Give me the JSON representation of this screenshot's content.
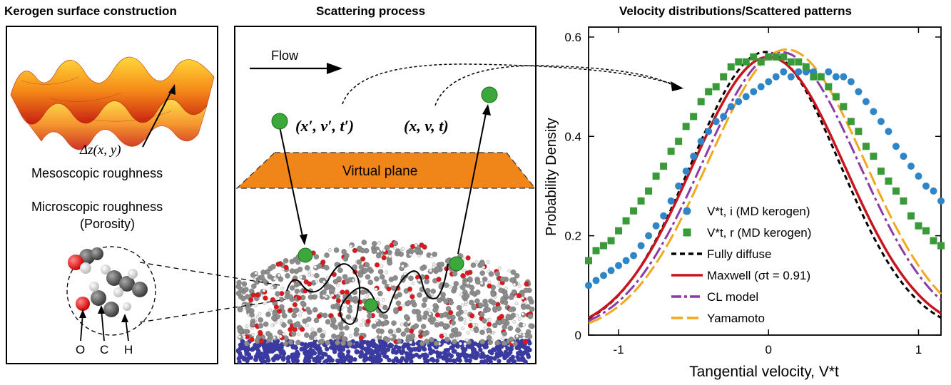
{
  "panels": {
    "left": {
      "title": "Kerogen surface construction",
      "delta_z": "Δz(x, y)",
      "meso": "Mesoscopic roughness",
      "micro_line1": "Microscopic roughness",
      "micro_line2": "(Porosity)",
      "atoms": [
        "O",
        "C",
        "H"
      ]
    },
    "middle": {
      "title": "Scattering process",
      "flow": "Flow",
      "incoming": "(x′, v′, t′)",
      "outgoing": "(x, v, t)",
      "virtual_plane": "Virtual plane"
    },
    "right": {
      "title": "Velocity distributions/Scattered patterns"
    }
  },
  "chart_data": {
    "type": "line",
    "xlabel": "Tangential velocity, V*t",
    "ylabel": "Probability Density",
    "xlim": [
      -1.2,
      1.15
    ],
    "ylim": [
      0,
      0.62
    ],
    "xticks": [
      "-1",
      "0",
      "1"
    ],
    "yticks": [
      "0",
      "0.2",
      "0.4",
      "0.6"
    ],
    "legend_position": "bottom-right",
    "series": [
      {
        "name": "V*t, i (MD kerogen)",
        "style": "scatter-circle",
        "color": "#2e86c8",
        "x": [
          -1.2,
          -1.15,
          -1.1,
          -1.05,
          -1.0,
          -0.95,
          -0.9,
          -0.85,
          -0.8,
          -0.75,
          -0.7,
          -0.65,
          -0.6,
          -0.55,
          -0.5,
          -0.45,
          -0.4,
          -0.35,
          -0.3,
          -0.25,
          -0.2,
          -0.15,
          -0.1,
          -0.05,
          0.0,
          0.05,
          0.1,
          0.15,
          0.2,
          0.25,
          0.3,
          0.35,
          0.4,
          0.45,
          0.5,
          0.55,
          0.6,
          0.65,
          0.7,
          0.75,
          0.8,
          0.85,
          0.9,
          0.95,
          1.0,
          1.05,
          1.1,
          1.15
        ],
        "y": [
          0.1,
          0.11,
          0.12,
          0.13,
          0.14,
          0.15,
          0.16,
          0.18,
          0.2,
          0.22,
          0.24,
          0.27,
          0.3,
          0.33,
          0.36,
          0.39,
          0.41,
          0.43,
          0.44,
          0.46,
          0.47,
          0.48,
          0.49,
          0.5,
          0.51,
          0.52,
          0.53,
          0.52,
          0.53,
          0.53,
          0.53,
          0.52,
          0.53,
          0.52,
          0.52,
          0.51,
          0.49,
          0.47,
          0.45,
          0.43,
          0.41,
          0.38,
          0.36,
          0.34,
          0.32,
          0.3,
          0.29,
          0.27
        ]
      },
      {
        "name": "V*t, r (MD kerogen)",
        "style": "scatter-square",
        "color": "#3a9a3a",
        "x": [
          -1.2,
          -1.15,
          -1.1,
          -1.05,
          -1.0,
          -0.95,
          -0.9,
          -0.85,
          -0.8,
          -0.75,
          -0.7,
          -0.65,
          -0.6,
          -0.55,
          -0.5,
          -0.45,
          -0.4,
          -0.35,
          -0.3,
          -0.25,
          -0.2,
          -0.15,
          -0.1,
          -0.05,
          0.0,
          0.05,
          0.1,
          0.15,
          0.2,
          0.25,
          0.3,
          0.35,
          0.4,
          0.45,
          0.5,
          0.55,
          0.6,
          0.65,
          0.7,
          0.75,
          0.8,
          0.85,
          0.9,
          0.95,
          1.0,
          1.05,
          1.1,
          1.15
        ],
        "y": [
          0.15,
          0.17,
          0.18,
          0.19,
          0.21,
          0.23,
          0.25,
          0.27,
          0.29,
          0.32,
          0.34,
          0.37,
          0.39,
          0.42,
          0.44,
          0.47,
          0.49,
          0.5,
          0.52,
          0.54,
          0.55,
          0.55,
          0.56,
          0.55,
          0.56,
          0.56,
          0.56,
          0.55,
          0.55,
          0.54,
          0.52,
          0.52,
          0.5,
          0.48,
          0.46,
          0.43,
          0.41,
          0.38,
          0.36,
          0.33,
          0.31,
          0.29,
          0.27,
          0.24,
          0.22,
          0.21,
          0.19,
          0.18
        ]
      },
      {
        "name": "Fully diffuse",
        "style": "dashed",
        "color": "#000000",
        "mu": -0.02,
        "sigma": 0.7,
        "amp": 0.57
      },
      {
        "name": "Maxwell (σt = 0.91)",
        "style": "solid",
        "color": "#c8141e",
        "mu": 0.0,
        "sigma": 0.72,
        "amp": 0.56
      },
      {
        "name": "CL model",
        "style": "dashdot",
        "color": "#8a3ba8",
        "mu": 0.08,
        "sigma": 0.74,
        "amp": 0.57
      },
      {
        "name": "Yamamoto",
        "style": "longdash",
        "color": "#f2a81d",
        "mu": 0.12,
        "sigma": 0.74,
        "amp": 0.575
      }
    ]
  }
}
